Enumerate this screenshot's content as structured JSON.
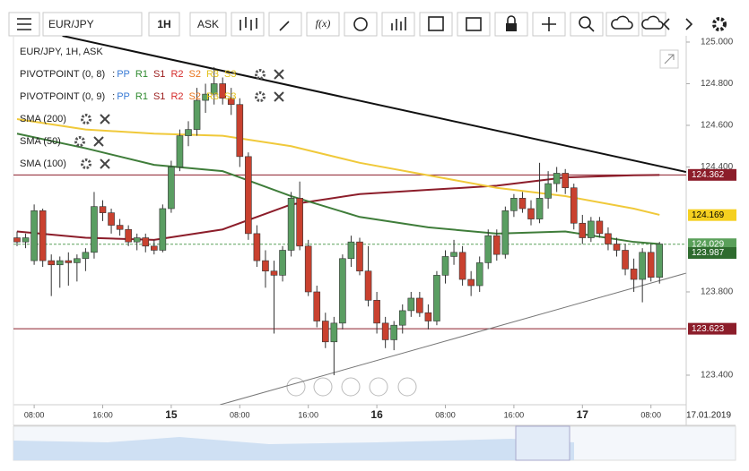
{
  "toolbar": {
    "symbol": "EUR/JPY",
    "interval": "1H",
    "side": "ASK",
    "fx": "f(x)"
  },
  "legend": {
    "title": "EUR/JPY, 1H, ASK",
    "pivots": [
      "PIVOTPOINT (0, 8)",
      "PIVOTPOINT (0, 9)"
    ],
    "pivot_colon": ":",
    "pivot_items": [
      {
        "name": "PP",
        "color": "#3a7bd5"
      },
      {
        "name": "R1",
        "color": "#2f8a2f"
      },
      {
        "name": "S1",
        "color": "#9b1c1c"
      },
      {
        "name": "R2",
        "color": "#d42a2a"
      },
      {
        "name": "S2",
        "color": "#e8731a"
      },
      {
        "name": "R3",
        "color": "#e3c21a"
      },
      {
        "name": "S3",
        "color": "#e3c21a"
      }
    ]
  },
  "chart_data": {
    "type": "candlestick",
    "categories": [
      null,
      null,
      "08:00",
      null,
      null,
      null,
      null,
      null,
      null,
      null,
      "16:00",
      null,
      null,
      null,
      null,
      null,
      null,
      null,
      "15",
      null,
      null,
      null,
      null,
      null,
      null,
      null,
      "08:00",
      null,
      null,
      null,
      null,
      null,
      null,
      null,
      "16:00",
      null,
      null,
      null,
      null,
      null,
      null,
      null,
      "16",
      null,
      null,
      null,
      null,
      null,
      null,
      null,
      "08:00",
      null,
      null,
      null,
      null,
      null,
      null,
      null,
      "16:00",
      null,
      null,
      null,
      null,
      null,
      null,
      null,
      "17",
      null,
      null,
      null,
      null,
      null,
      null,
      null,
      "08:00",
      null
    ],
    "date_label": "17.01.2019",
    "open": [
      124.06,
      124.04,
      123.95,
      124.19,
      123.95,
      123.93,
      123.95,
      123.94,
      123.96,
      123.99,
      124.21,
      124.18,
      124.12,
      124.1,
      124.04,
      124.06,
      124.02,
      124.0,
      124.2,
      124.4,
      124.55,
      124.58,
      124.72,
      124.75,
      124.8,
      124.73,
      124.7,
      124.45,
      124.08,
      123.95,
      123.9,
      123.88,
      124.0,
      124.25,
      124.02,
      123.8,
      123.66,
      123.56,
      123.65,
      123.96,
      124.04,
      123.9,
      123.76,
      123.65,
      123.57,
      123.64,
      123.71,
      123.77,
      123.7,
      123.66,
      123.88,
      123.97,
      123.99,
      123.86,
      123.83,
      123.94,
      124.07,
      123.98,
      124.19,
      124.25,
      124.2,
      124.15,
      124.25,
      124.32,
      124.37,
      124.3,
      124.13,
      124.06,
      124.14,
      124.08,
      124.03,
      124.0,
      123.91,
      123.86,
      123.99,
      123.87
    ],
    "high": [
      124.09,
      124.08,
      124.22,
      124.2,
      123.98,
      123.97,
      123.99,
      123.98,
      124.01,
      124.28,
      124.24,
      124.2,
      124.15,
      124.12,
      124.08,
      124.08,
      124.05,
      124.22,
      124.43,
      124.58,
      124.62,
      124.78,
      124.8,
      124.88,
      124.83,
      124.78,
      124.73,
      124.47,
      124.12,
      124.0,
      123.95,
      124.02,
      124.28,
      124.33,
      124.05,
      123.83,
      123.7,
      123.68,
      123.98,
      124.07,
      124.06,
      124.02,
      123.8,
      123.68,
      123.66,
      123.74,
      123.8,
      123.8,
      123.74,
      123.9,
      124.0,
      124.05,
      124.02,
      123.9,
      123.97,
      124.1,
      124.1,
      124.21,
      124.27,
      124.28,
      124.24,
      124.42,
      124.38,
      124.4,
      124.39,
      124.32,
      124.17,
      124.16,
      124.16,
      124.11,
      124.06,
      124.03,
      123.96,
      124.01,
      124.03,
      124.04
    ],
    "low": [
      124.02,
      124.01,
      123.93,
      123.92,
      123.78,
      123.82,
      123.83,
      123.85,
      123.9,
      123.96,
      124.14,
      124.08,
      124.07,
      124.02,
      124.0,
      123.99,
      123.98,
      123.99,
      124.18,
      124.38,
      124.5,
      124.55,
      124.66,
      124.7,
      124.7,
      124.65,
      124.4,
      124.05,
      123.92,
      123.82,
      123.6,
      123.85,
      123.97,
      124.0,
      123.78,
      123.63,
      123.53,
      123.4,
      123.62,
      123.92,
      123.88,
      123.73,
      123.6,
      123.53,
      123.52,
      123.6,
      123.68,
      123.68,
      123.62,
      123.64,
      123.84,
      123.93,
      123.83,
      123.78,
      123.8,
      123.91,
      123.95,
      123.96,
      124.16,
      124.18,
      124.12,
      124.13,
      124.2,
      124.28,
      124.27,
      124.1,
      124.03,
      124.04,
      124.06,
      124.0,
      123.97,
      123.88,
      123.8,
      123.75,
      123.85,
      123.84
    ],
    "close": [
      124.04,
      124.06,
      124.19,
      123.95,
      123.93,
      123.95,
      123.94,
      123.96,
      123.99,
      124.21,
      124.18,
      124.12,
      124.1,
      124.04,
      124.06,
      124.02,
      124.0,
      124.2,
      124.4,
      124.55,
      124.58,
      124.72,
      124.75,
      124.8,
      124.73,
      124.7,
      124.45,
      124.08,
      123.95,
      123.9,
      123.88,
      124.0,
      124.25,
      124.02,
      123.8,
      123.66,
      123.56,
      123.65,
      123.96,
      124.04,
      123.9,
      123.76,
      123.65,
      123.57,
      123.64,
      123.71,
      123.77,
      123.7,
      123.66,
      123.88,
      123.97,
      123.99,
      123.86,
      123.83,
      123.94,
      124.07,
      123.98,
      124.19,
      124.25,
      124.2,
      124.15,
      124.25,
      124.32,
      124.37,
      124.3,
      124.13,
      124.06,
      124.14,
      124.08,
      124.03,
      124.0,
      123.91,
      123.86,
      123.99,
      123.87,
      124.03
    ],
    "up_color": "#5a9e62",
    "down_color": "#c9412f",
    "series": [
      {
        "name": "SMA (200)",
        "color": "#8c1d2a",
        "x": [
          0,
          8,
          16,
          24,
          32,
          40,
          48,
          56,
          64,
          72,
          75
        ],
        "values": [
          124.09,
          124.06,
          124.05,
          124.1,
          124.22,
          124.27,
          124.29,
          124.31,
          124.35,
          124.36,
          124.362
        ]
      },
      {
        "name": "SMA (50)",
        "color": "#3f7d3a",
        "x": [
          0,
          8,
          16,
          24,
          32,
          40,
          48,
          56,
          64,
          72,
          75
        ],
        "values": [
          124.56,
          124.49,
          124.41,
          124.38,
          124.26,
          124.16,
          124.11,
          124.08,
          124.09,
          124.04,
          124.03
        ]
      },
      {
        "name": "SMA (100)",
        "color": "#f0c93a",
        "x": [
          0,
          8,
          16,
          24,
          32,
          40,
          48,
          56,
          64,
          72,
          75
        ],
        "values": [
          124.63,
          124.58,
          124.56,
          124.55,
          124.5,
          124.42,
          124.36,
          124.3,
          124.26,
          124.2,
          124.17
        ]
      }
    ],
    "trendlines": [
      {
        "color": "#111111",
        "x": [
          5.3,
          78.1
        ],
        "values": [
          125.03,
          124.376
        ]
      },
      {
        "color": "#777777",
        "x": [
          23.7,
          78.1
        ],
        "values": [
          123.258,
          123.89
        ]
      }
    ],
    "levels": [
      {
        "value": 124.362,
        "color": "#8c1d2a",
        "line": "solid"
      },
      {
        "value": 124.169,
        "color": "#f5d020",
        "line": "none"
      },
      {
        "value": 124.029,
        "color": "#5aa05a",
        "line": "dashed"
      },
      {
        "value": 123.987,
        "color": "#2e6b2e",
        "line": "none"
      },
      {
        "value": 123.623,
        "color": "#8c1d2a",
        "line": "solid"
      }
    ],
    "ylim": [
      123.258,
      125.03
    ],
    "yticks": [
      {
        "value": 123.4,
        "label": "123.400"
      },
      {
        "value": 123.8,
        "label": "123.800"
      },
      {
        "value": 124.4,
        "label": "124.400"
      },
      {
        "value": 124.6,
        "label": "124.600"
      },
      {
        "value": 124.8,
        "label": "124.800"
      },
      {
        "value": 125.0,
        "label": "125.000"
      }
    ]
  }
}
